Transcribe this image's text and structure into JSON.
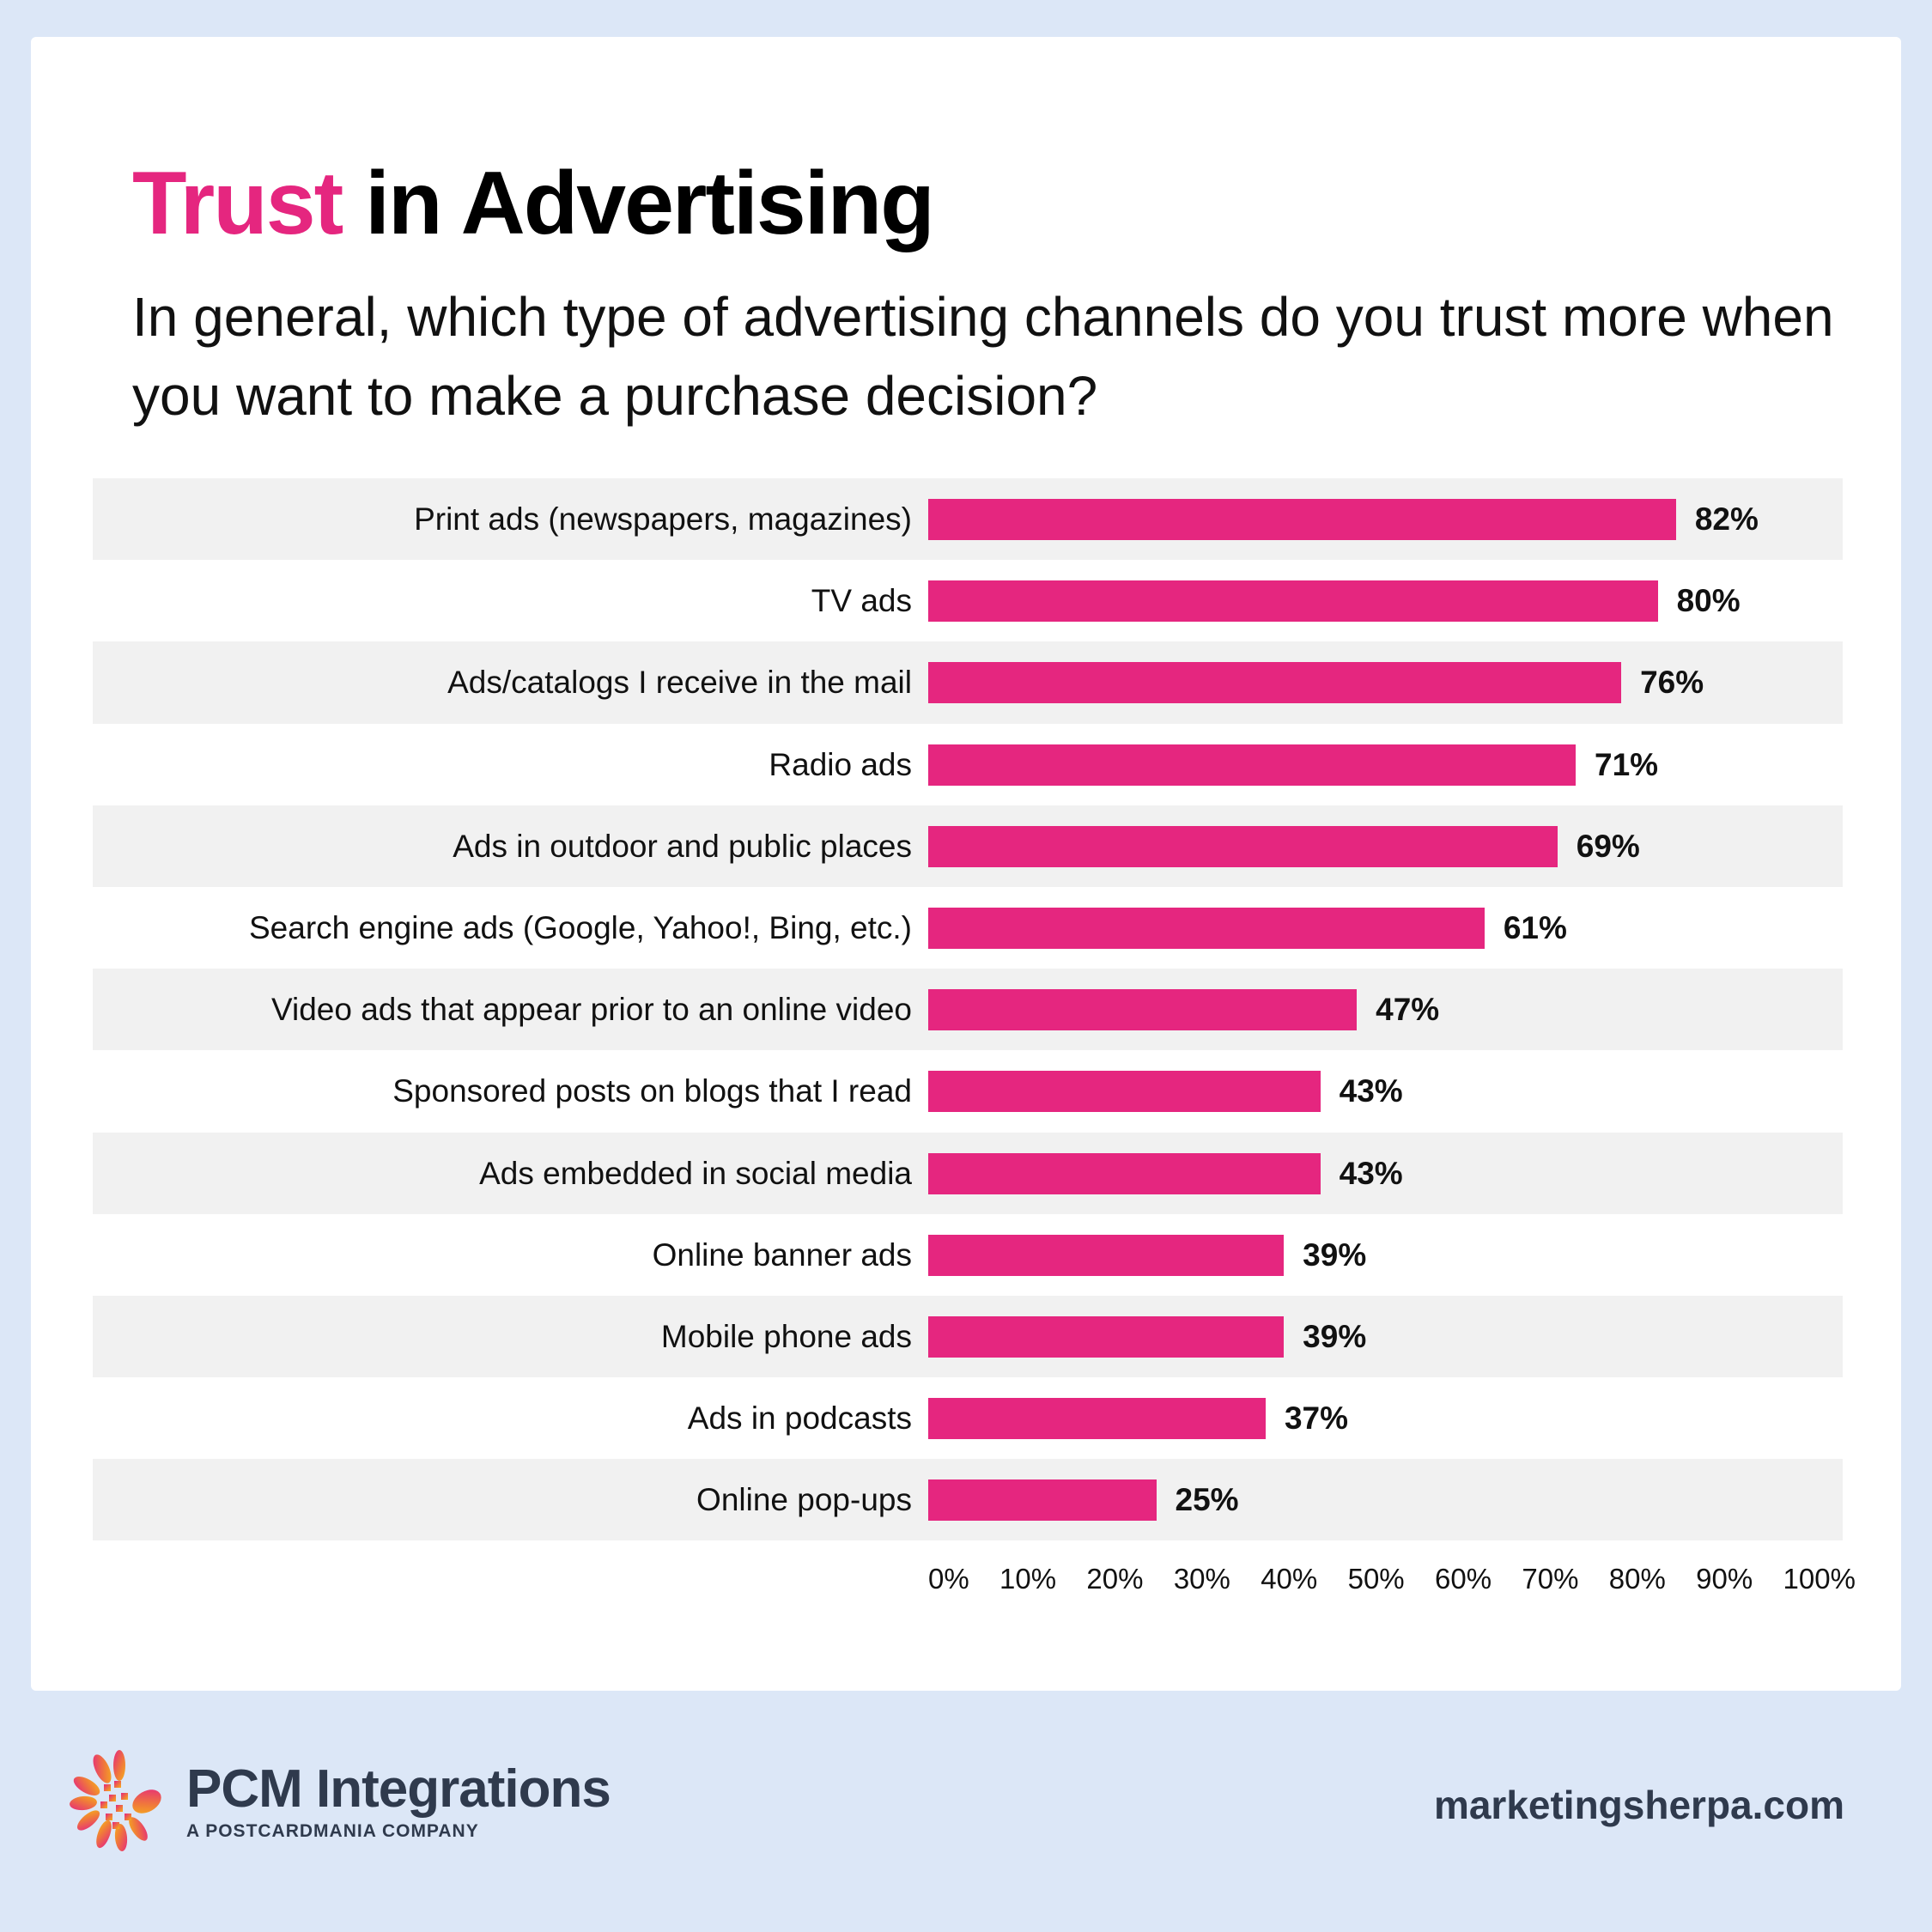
{
  "header": {
    "title_accent": "Trust",
    "title_rest": " in Advertising",
    "subtitle": "In general, which type of advertising channels do you trust more when you want to make a purchase decision?"
  },
  "colors": {
    "accent": "#e5267f",
    "background": "#dce7f7",
    "row_shade": "#f1f1f1",
    "footer_text": "#2f3a4d"
  },
  "chart_data": {
    "type": "bar",
    "orientation": "horizontal",
    "title": "Trust in Advertising",
    "subtitle": "In general, which type of advertising channels do you trust more when you want to make a purchase decision?",
    "categories": [
      "Print ads (newspapers, magazines)",
      "TV ads",
      "Ads/catalogs I receive in the mail",
      "Radio ads",
      "Ads in outdoor and public places",
      "Search engine ads (Google, Yahoo!, Bing, etc.)",
      "Video ads that appear prior to an online video",
      "Sponsored posts on blogs that I read",
      "Ads embedded in social media",
      "Online banner ads",
      "Mobile phone ads",
      "Ads in podcasts",
      "Online pop-ups"
    ],
    "values": [
      82,
      80,
      76,
      71,
      69,
      61,
      47,
      43,
      43,
      39,
      39,
      37,
      25
    ],
    "value_labels": [
      "82%",
      "80%",
      "76%",
      "71%",
      "69%",
      "61%",
      "47%",
      "43%",
      "43%",
      "39%",
      "39%",
      "37%",
      "25%"
    ],
    "xlabel": "",
    "ylabel": "",
    "xlim": [
      0,
      100
    ],
    "x_ticks": [
      "0%",
      "10%",
      "20%",
      "30%",
      "40%",
      "50%",
      "60%",
      "70%",
      "80%",
      "90%",
      "100%"
    ],
    "grid": false,
    "legend": null,
    "bar_color": "#e5267f"
  },
  "footer": {
    "logo_name": "PCM Integrations",
    "logo_sub": "A POSTCARDMANIA COMPANY",
    "logo_icon": "flower-pixel-logo-icon",
    "url": "marketingsherpa.com"
  }
}
